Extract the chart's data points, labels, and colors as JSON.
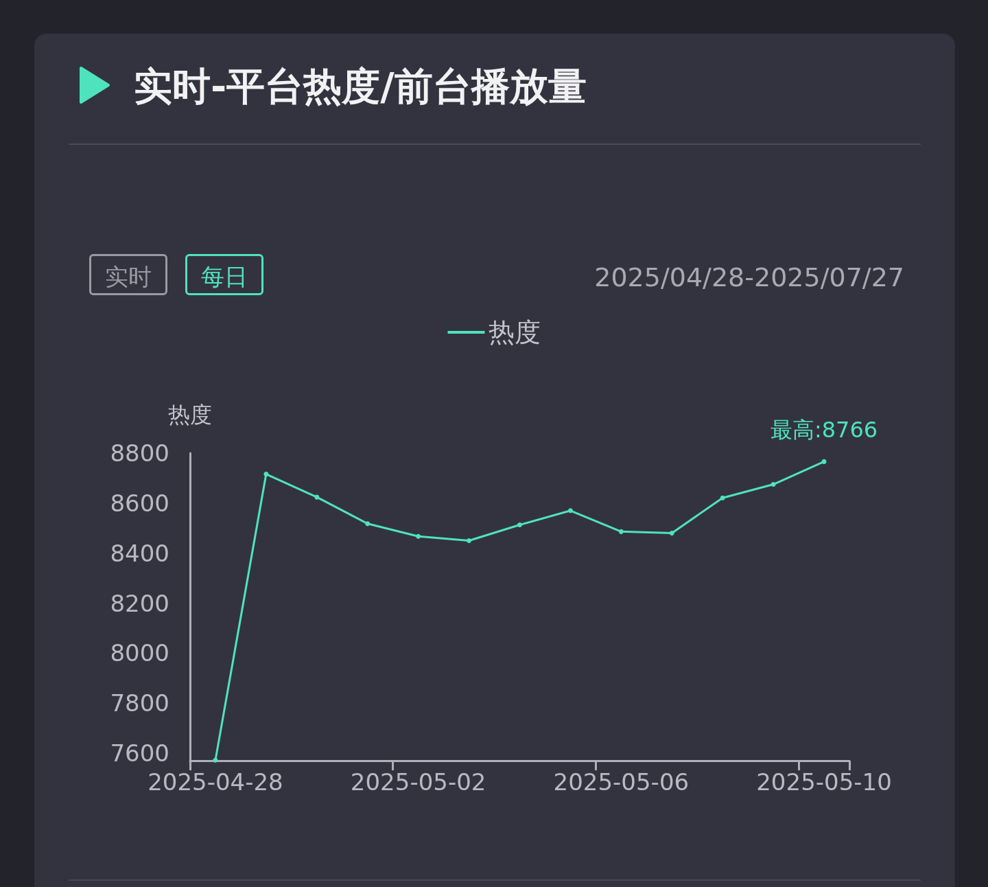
{
  "chart_data": {
    "type": "line",
    "title": "实时-平台热度/前台播放量",
    "ylabel": "热度",
    "annotations": [
      "实时",
      "每日",
      "2025/04/28-2025/07/27",
      {
        "text": "最高:8766",
        "x": "2025-05-10",
        "y": 8766
      }
    ],
    "categories": [
      "2025-04-28",
      null,
      null,
      null,
      "2025-05-02",
      null,
      null,
      null,
      "2025-05-06",
      null,
      null,
      null,
      "2025-05-10"
    ],
    "series": [
      {
        "name": "热度",
        "color": "#4fe3bd",
        "values": [
          7572,
          8716,
          8624,
          8518,
          8467,
          8450,
          8513,
          8570,
          8486,
          8480,
          8621,
          8675,
          8766
        ]
      }
    ],
    "ylim": [
      7570,
      8800
    ],
    "yticks": [
      7600,
      7800,
      8000,
      8200,
      8400,
      8600,
      8800
    ],
    "grid": false,
    "legend": "top",
    "marker": "circle",
    "line_style": "solid"
  }
}
